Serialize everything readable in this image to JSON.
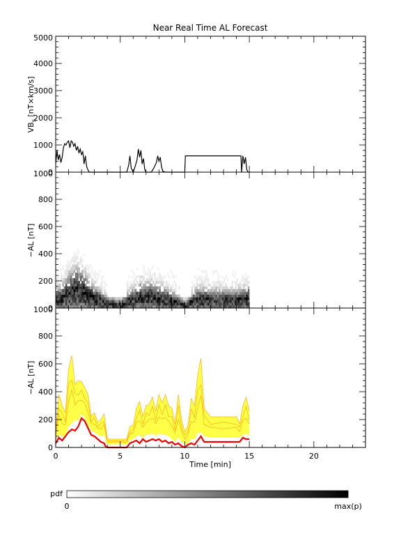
{
  "chart_data": [
    {
      "type": "line",
      "title": "Near Real Time AL Forecast",
      "ylabel_main": "VB",
      "ylabel_sub": "s",
      "ylabel_rest": " [nT×km/s]",
      "xlim": [
        0,
        24
      ],
      "ylim": [
        0,
        5000
      ],
      "yticks": [
        "0",
        "1000",
        "2000",
        "3000",
        "4000",
        "5000"
      ],
      "series": [
        {
          "color": "#000000",
          "x": [
            0,
            0.1,
            0.2,
            0.3,
            0.4,
            0.5,
            0.6,
            0.7,
            0.8,
            0.9,
            1.0,
            1.1,
            1.2,
            1.3,
            1.4,
            1.5,
            1.6,
            1.7,
            1.8,
            1.9,
            2.0,
            2.1,
            2.2,
            2.3,
            2.4,
            2.5,
            2.6,
            2.7,
            2.8,
            3.0,
            4.0,
            5.0,
            5.5,
            5.65,
            5.75,
            5.85,
            6.0,
            6.15,
            6.3,
            6.4,
            6.5,
            6.6,
            6.7,
            6.8,
            6.9,
            7.0,
            7.1,
            7.2,
            7.4,
            7.6,
            7.8,
            7.9,
            8.0,
            8.1,
            8.2,
            8.3,
            8.5,
            9.0,
            9.5,
            9.9,
            10.0,
            10.05,
            11.0,
            12.0,
            13.0,
            14.0,
            14.35,
            14.4,
            14.5,
            14.6,
            14.7,
            14.8,
            14.9,
            15.0
          ],
          "y": [
            300,
            800,
            450,
            650,
            350,
            550,
            900,
            1050,
            1000,
            1100,
            1150,
            900,
            1150,
            1100,
            950,
            1050,
            800,
            950,
            700,
            850,
            650,
            750,
            300,
            600,
            200,
            80,
            0,
            0,
            0,
            0,
            0,
            0,
            0,
            250,
            600,
            150,
            0,
            200,
            450,
            850,
            550,
            800,
            300,
            500,
            100,
            0,
            0,
            0,
            0,
            150,
            350,
            600,
            400,
            550,
            200,
            30,
            0,
            0,
            0,
            0,
            0,
            600,
            600,
            600,
            600,
            600,
            600,
            0,
            600,
            300,
            550,
            100,
            0,
            0
          ]
        }
      ]
    },
    {
      "type": "heatmap",
      "ylabel": "−AL [nT]",
      "xlim": [
        0,
        24
      ],
      "ylim": [
        0,
        1000
      ],
      "yticks": [
        "0",
        "200",
        "400",
        "600",
        "800",
        "1000"
      ],
      "colormap": [
        "#ffffff",
        "#000000"
      ],
      "x_range": [
        0,
        15
      ],
      "peaks": [
        [
          0,
          40
        ],
        [
          0.5,
          60
        ],
        [
          1.0,
          90
        ],
        [
          1.5,
          110
        ],
        [
          2.0,
          100
        ],
        [
          2.5,
          70
        ],
        [
          3.0,
          50
        ],
        [
          4.0,
          15
        ],
        [
          5.0,
          10
        ],
        [
          5.5,
          30
        ],
        [
          6.5,
          60
        ],
        [
          7.5,
          60
        ],
        [
          8.5,
          45
        ],
        [
          9.5,
          20
        ],
        [
          10.0,
          5
        ],
        [
          10.5,
          30
        ],
        [
          11.0,
          45
        ],
        [
          12.0,
          40
        ],
        [
          13.0,
          40
        ],
        [
          14.0,
          40
        ],
        [
          15.0,
          50
        ]
      ]
    },
    {
      "type": "area",
      "ylabel": "−AL [nT]",
      "xlabel": "Time [min]",
      "xlim": [
        0,
        24
      ],
      "ylim": [
        0,
        1000
      ],
      "yticks": [
        "0",
        "200",
        "400",
        "600",
        "800",
        "1000"
      ],
      "xticks": [
        "0",
        "5",
        "10",
        "15",
        "20"
      ],
      "fill_color": "#ffff33",
      "envelope_color": "#ff9900",
      "median_color": "#ee0000",
      "upper": {
        "x": [
          0,
          0.25,
          0.5,
          0.75,
          1.0,
          1.25,
          1.5,
          1.75,
          2.0,
          2.25,
          2.5,
          2.75,
          3.0,
          3.25,
          3.5,
          3.75,
          4.0,
          5.0,
          5.5,
          5.75,
          6.0,
          6.25,
          6.5,
          6.75,
          7.0,
          7.25,
          7.5,
          7.75,
          8.0,
          8.25,
          8.5,
          8.75,
          9.0,
          9.25,
          9.5,
          9.75,
          10.0,
          10.25,
          10.5,
          10.75,
          11.0,
          11.25,
          11.5,
          12.0,
          13.0,
          14.0,
          14.25,
          14.5,
          14.75,
          15.0
        ],
        "y": [
          120,
          380,
          300,
          250,
          560,
          660,
          450,
          480,
          470,
          430,
          380,
          220,
          250,
          180,
          200,
          240,
          60,
          60,
          60,
          150,
          160,
          280,
          330,
          220,
          300,
          310,
          360,
          260,
          380,
          320,
          380,
          300,
          280,
          170,
          380,
          200,
          110,
          160,
          350,
          300,
          520,
          640,
          280,
          220,
          220,
          220,
          170,
          300,
          360,
          260
        ]
      },
      "lower": {
        "x": [
          0,
          0.25,
          0.5,
          0.75,
          1.0,
          1.25,
          1.5,
          1.75,
          2.0,
          2.25,
          2.5,
          2.75,
          3.0,
          3.25,
          3.5,
          3.75,
          4.0,
          5.0,
          5.5,
          5.75,
          6.0,
          6.25,
          6.5,
          6.75,
          7.0,
          7.25,
          7.5,
          7.75,
          8.0,
          8.25,
          8.5,
          8.75,
          9.0,
          9.25,
          9.5,
          9.75,
          10.0,
          10.25,
          10.5,
          10.75,
          11.0,
          11.25,
          11.5,
          12.0,
          13.0,
          14.0,
          14.25,
          14.5,
          14.75,
          15.0
        ],
        "y": [
          60,
          90,
          80,
          70,
          150,
          170,
          200,
          190,
          240,
          210,
          160,
          120,
          110,
          90,
          80,
          90,
          20,
          20,
          20,
          50,
          60,
          80,
          90,
          70,
          90,
          90,
          100,
          80,
          100,
          90,
          90,
          80,
          60,
          40,
          70,
          40,
          20,
          30,
          60,
          60,
          100,
          110,
          80,
          70,
          70,
          70,
          70,
          90,
          100,
          80
        ]
      },
      "median": {
        "x": [
          0,
          0.25,
          0.5,
          0.75,
          1.0,
          1.25,
          1.5,
          1.75,
          2.0,
          2.25,
          2.5,
          2.75,
          3.0,
          3.25,
          3.5,
          3.75,
          3.85,
          4.0,
          5.0,
          5.5,
          5.75,
          6.0,
          6.25,
          6.5,
          6.75,
          7.0,
          7.25,
          7.5,
          7.75,
          8.0,
          8.25,
          8.5,
          8.75,
          9.0,
          9.25,
          9.5,
          9.75,
          10.0,
          10.25,
          10.5,
          10.75,
          11.0,
          11.25,
          11.5,
          12.0,
          13.0,
          14.0,
          14.25,
          14.5,
          14.75,
          15.0
        ],
        "y": [
          30,
          70,
          50,
          80,
          110,
          130,
          120,
          150,
          210,
          190,
          140,
          90,
          80,
          60,
          40,
          30,
          10,
          0,
          0,
          0,
          30,
          40,
          50,
          30,
          60,
          40,
          50,
          60,
          50,
          60,
          40,
          50,
          30,
          40,
          20,
          30,
          10,
          0,
          20,
          30,
          20,
          50,
          80,
          40,
          40,
          40,
          40,
          40,
          70,
          60,
          60
        ]
      }
    }
  ],
  "colorbar": {
    "label": "pdf",
    "min_label": "0",
    "max_label": "max(p)"
  }
}
